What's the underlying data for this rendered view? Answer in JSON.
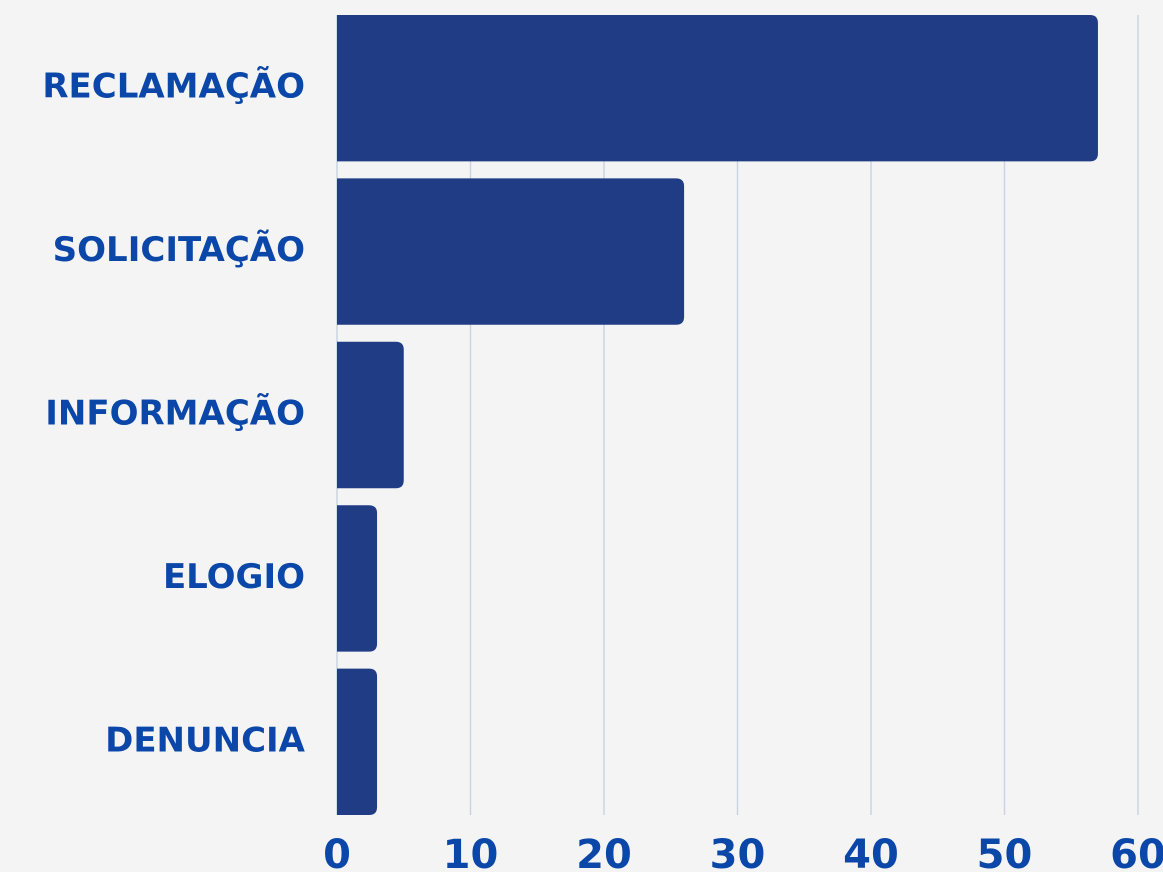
{
  "chart_data": {
    "type": "bar",
    "orientation": "horizontal",
    "categories": [
      "RECLAMAÇÃO",
      "SOLICITAÇÃO",
      "INFORMAÇÃO",
      "ELOGIO",
      "DENUNCIA"
    ],
    "values": [
      57,
      26,
      5,
      3,
      3
    ],
    "color": "#1f3c85",
    "xlim": [
      0,
      60
    ],
    "xticks": [
      0,
      10,
      20,
      30,
      40,
      50,
      60
    ],
    "grid": true
  }
}
